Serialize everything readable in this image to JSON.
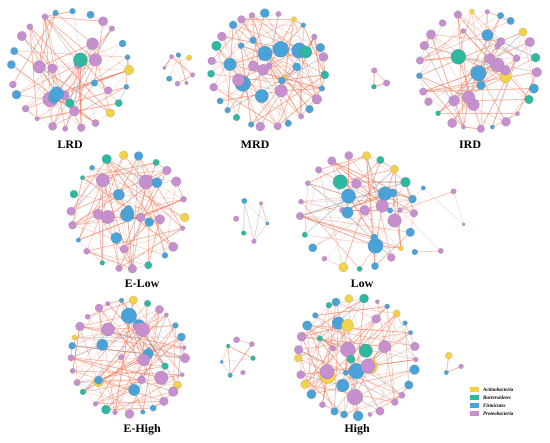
{
  "legend": [
    {
      "phylum": "Actinobacteria",
      "color": "#f3d24a"
    },
    {
      "phylum": "Bacteroidetes",
      "color": "#2fb7a0"
    },
    {
      "phylum": "Firmicutes",
      "color": "#4aa3d8"
    },
    {
      "phylum": "Proteobacteria",
      "color": "#c58fd0"
    }
  ],
  "edge_color": "#f07a5a",
  "edge_color_alt": "#9aa6b2",
  "panels": [
    {
      "label": "LRD",
      "clusters": [
        {
          "n": 38,
          "center": true
        },
        {
          "n": 8,
          "center": false
        }
      ]
    },
    {
      "label": "MRD",
      "clusters": [
        {
          "n": 44,
          "center": true
        },
        {
          "n": 3,
          "center": false
        }
      ]
    },
    {
      "label": "IRD",
      "clusters": [
        {
          "n": 40,
          "center": true
        }
      ]
    },
    {
      "label": "E-Low",
      "clusters": [
        {
          "n": 36,
          "center": true
        },
        {
          "n": 6,
          "center": false
        }
      ]
    },
    {
      "label": "Low",
      "clusters": [
        {
          "n": 34,
          "center": true
        },
        {
          "n": 6,
          "center": false
        }
      ]
    },
    {
      "label": "E-High",
      "clusters": [
        {
          "n": 46,
          "center": true
        },
        {
          "n": 7,
          "center": false
        }
      ]
    },
    {
      "label": "High",
      "clusters": [
        {
          "n": 46,
          "center": true
        },
        {
          "n": 3,
          "center": false
        }
      ]
    }
  ]
}
